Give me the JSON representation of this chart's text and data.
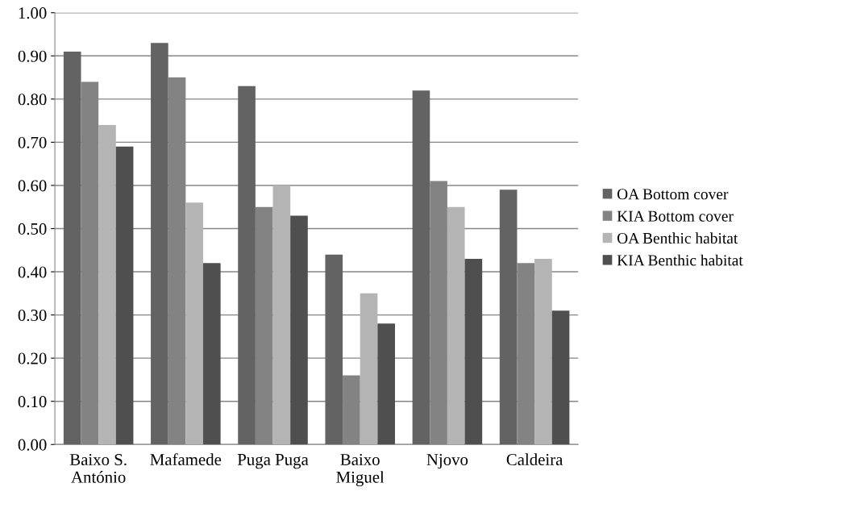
{
  "chart_data": {
    "type": "bar",
    "categories": [
      "Baixo S.\nAntónio",
      "Mafamede",
      "Puga Puga",
      "Baixo\nMiguel",
      "Njovo",
      "Caldeira"
    ],
    "series": [
      {
        "name": "OA Bottom cover",
        "color": "#636363",
        "values": [
          0.91,
          0.93,
          0.83,
          0.44,
          0.82,
          0.59
        ]
      },
      {
        "name": "KIA Bottom cover",
        "color": "#838383",
        "values": [
          0.84,
          0.85,
          0.55,
          0.16,
          0.61,
          0.42
        ]
      },
      {
        "name": "OA Benthic habitat",
        "color": "#b4b4b4",
        "values": [
          0.74,
          0.56,
          0.6,
          0.35,
          0.55,
          0.43
        ]
      },
      {
        "name": "KIA Benthic habitat",
        "color": "#4f4f4f",
        "values": [
          0.69,
          0.42,
          0.53,
          0.28,
          0.43,
          0.31
        ]
      }
    ],
    "ylim": [
      0,
      1
    ],
    "yticks": [
      {
        "value": 0,
        "label": "0.00"
      },
      {
        "value": 0.1,
        "label": "0.10"
      },
      {
        "value": 0.2,
        "label": "0.20"
      },
      {
        "value": 0.3,
        "label": "0.30"
      },
      {
        "value": 0.4,
        "label": "0.40"
      },
      {
        "value": 0.5,
        "label": "0.50"
      },
      {
        "value": 0.6,
        "label": "0.60"
      },
      {
        "value": 0.7,
        "label": "0.70"
      },
      {
        "value": 0.8,
        "label": "0.80"
      },
      {
        "value": 0.9,
        "label": "0.90"
      },
      {
        "value": 1,
        "label": "1.00"
      }
    ],
    "grid": "y",
    "legend": "right"
  }
}
